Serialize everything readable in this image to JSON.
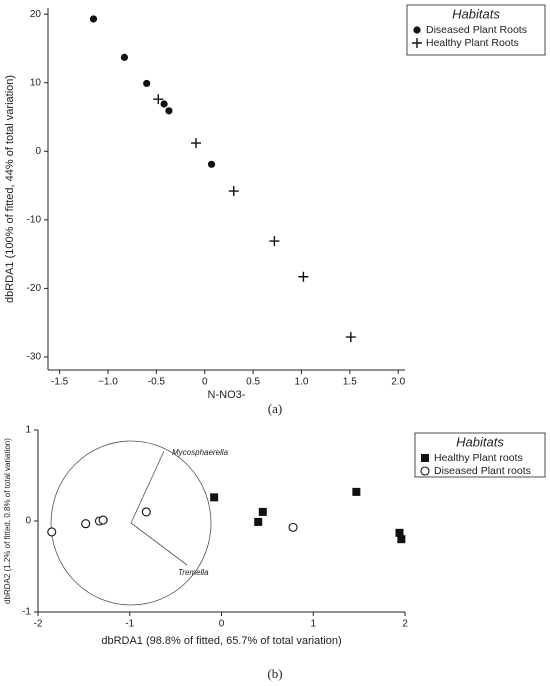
{
  "chart_data": [
    {
      "type": "scatter",
      "caption": "(a)",
      "xlabel": "N-NO3-",
      "ylabel": "dbRDA1 (100% of fitted, 44% of total variation)",
      "legend_title": "Habitats",
      "legend": "right",
      "xlim": [
        -1.62,
        2.07
      ],
      "ylim": [
        -31.9,
        20.9
      ],
      "xticks": [
        -1.5,
        {
          "value": -1,
          "label": "−1.0"
        },
        -0.5,
        0,
        0.5,
        {
          "value": 1,
          "label": "1.0"
        },
        1.5,
        {
          "value": 2,
          "label": "2.0"
        }
      ],
      "yticks": [
        20,
        10,
        0,
        -10,
        -20,
        -30
      ],
      "series": [
        {
          "name": "Diseased Plant Roots",
          "color": "#111111",
          "marker": "circle",
          "x": [
            -1.15,
            -0.83,
            -0.6,
            -0.42,
            -0.37,
            0.07
          ],
          "values": [
            19.3,
            13.7,
            9.9,
            6.9,
            5.9,
            -1.9
          ]
        },
        {
          "name": "Healthy Plant Roots",
          "color": "#111111",
          "marker": "plus",
          "x": [
            -0.48,
            -0.09,
            0.3,
            0.72,
            1.02,
            1.51
          ],
          "values": [
            7.6,
            1.2,
            -5.8,
            -13.1,
            -18.3,
            -27.1
          ]
        }
      ]
    },
    {
      "type": "scatter",
      "caption": "(b)",
      "xlabel": "dbRDA1 (98.8% of fitted, 65.7% of total variation)",
      "ylabel": "dbRDA2 (1.2% of fitted, 0.8% of total variation)",
      "legend_title": "Habitats",
      "legend": "right",
      "annotations": [
        "Mycosphaerella",
        "Tremella"
      ],
      "xlim": [
        -2,
        2
      ],
      "ylim": [
        -1,
        1
      ],
      "xticks": [
        -2,
        -1,
        0,
        1,
        2
      ],
      "yticks": [
        -1,
        0,
        1
      ],
      "series": [
        {
          "name": "Healthy Plant roots",
          "color": "#111111",
          "marker": "square",
          "x": [
            -0.08,
            0.45,
            0.4,
            1.47,
            1.94,
            1.96
          ],
          "values": [
            0.26,
            0.1,
            -0.01,
            0.32,
            -0.13,
            -0.2
          ]
        },
        {
          "name": "Diseased Plant roots",
          "color": "#111111",
          "marker": "open-circle",
          "x": [
            -1.85,
            -1.48,
            -1.33,
            -1.29,
            -0.82,
            0.78
          ],
          "values": [
            -0.12,
            -0.03,
            0,
            0.01,
            0.1,
            -0.07
          ]
        }
      ]
    }
  ]
}
